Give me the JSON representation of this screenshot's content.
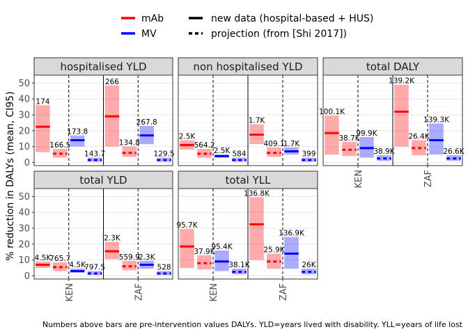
{
  "legend": {
    "colors": [
      {
        "label": "mAb",
        "color": "#ff0000"
      },
      {
        "label": "MV",
        "color": "#0000ff"
      }
    ],
    "linetypes": [
      {
        "label": "new data (hospital-based + HUS)",
        "style": "solid"
      },
      {
        "label": "projection (from [Shi 2017])",
        "style": "dashed"
      }
    ]
  },
  "ylabel": "% reduction in DALYs (mean, CI95)",
  "caption": "Numbers above bars are pre-intervention values DALYs. YLD=years lived with disability. YLL=years of life lost",
  "chart_data": [
    {
      "type": "bar",
      "title": "hospitalised YLD",
      "categories": [
        "KEN",
        "ZAF"
      ],
      "ylim": [
        -2,
        55
      ],
      "yticks": [
        0,
        10,
        20,
        30,
        40,
        50
      ],
      "show_x_ticks": false,
      "bars": [
        {
          "country": "KEN",
          "product": "mAb",
          "source": "new data",
          "mean": 22.5,
          "lo": 6.5,
          "hi": 36,
          "label": "174"
        },
        {
          "country": "KEN",
          "product": "mAb",
          "source": "projection",
          "mean": 5.5,
          "lo": 3,
          "hi": 8.5,
          "label": "166.5"
        },
        {
          "country": "KEN",
          "product": "MV",
          "source": "new data",
          "mean": 14,
          "lo": 10,
          "hi": 17,
          "label": "173.8"
        },
        {
          "country": "KEN",
          "product": "MV",
          "source": "projection",
          "mean": 1.5,
          "lo": 0.5,
          "hi": 3,
          "label": "143.7"
        },
        {
          "country": "ZAF",
          "product": "mAb",
          "source": "new data",
          "mean": 29,
          "lo": 10,
          "hi": 48.5,
          "label": "266"
        },
        {
          "country": "ZAF",
          "product": "mAb",
          "source": "projection",
          "mean": 6,
          "lo": 3.5,
          "hi": 10,
          "label": "134.8"
        },
        {
          "country": "ZAF",
          "product": "MV",
          "source": "new data",
          "mean": 17,
          "lo": 11.5,
          "hi": 23,
          "label": "267.8"
        },
        {
          "country": "ZAF",
          "product": "MV",
          "source": "projection",
          "mean": 1.5,
          "lo": 0.5,
          "hi": 3,
          "label": "129.5"
        }
      ]
    },
    {
      "type": "bar",
      "title": "non hospitalised YLD",
      "categories": [
        "KEN",
        "ZAF"
      ],
      "ylim": [
        -2,
        55
      ],
      "yticks": [
        0,
        10,
        20,
        30,
        40,
        50
      ],
      "show_x_ticks": false,
      "bars": [
        {
          "country": "KEN",
          "product": "mAb",
          "source": "new data",
          "mean": 11,
          "lo": 8,
          "hi": 14,
          "label": "2.5K"
        },
        {
          "country": "KEN",
          "product": "mAb",
          "source": "projection",
          "mean": 5.5,
          "lo": 3,
          "hi": 8.5,
          "label": "564.2"
        },
        {
          "country": "KEN",
          "product": "MV",
          "source": "new data",
          "mean": 4,
          "lo": 3,
          "hi": 5,
          "label": "2.5K"
        },
        {
          "country": "KEN",
          "product": "MV",
          "source": "projection",
          "mean": 1.5,
          "lo": 0.5,
          "hi": 3,
          "label": "584"
        },
        {
          "country": "ZAF",
          "product": "mAb",
          "source": "new data",
          "mean": 17.5,
          "lo": 11.5,
          "hi": 24,
          "label": "1.7K"
        },
        {
          "country": "ZAF",
          "product": "mAb",
          "source": "projection",
          "mean": 6,
          "lo": 3.5,
          "hi": 9.5,
          "label": "409.1"
        },
        {
          "country": "ZAF",
          "product": "MV",
          "source": "new data",
          "mean": 7,
          "lo": 5,
          "hi": 9.5,
          "label": "1.7K"
        },
        {
          "country": "ZAF",
          "product": "MV",
          "source": "projection",
          "mean": 1.5,
          "lo": 0.5,
          "hi": 3,
          "label": "399"
        }
      ]
    },
    {
      "type": "bar",
      "title": "total DALY",
      "categories": [
        "KEN",
        "ZAF"
      ],
      "ylim": [
        -2,
        55
      ],
      "yticks": [
        0,
        10,
        20,
        30,
        40,
        50
      ],
      "show_x_ticks": true,
      "bars": [
        {
          "country": "KEN",
          "product": "mAb",
          "source": "new data",
          "mean": 18.5,
          "lo": 5,
          "hi": 29.5,
          "label": "100.1K"
        },
        {
          "country": "KEN",
          "product": "mAb",
          "source": "projection",
          "mean": 8,
          "lo": 4,
          "hi": 13,
          "label": "38.7K"
        },
        {
          "country": "KEN",
          "product": "MV",
          "source": "new data",
          "mean": 9,
          "lo": 3,
          "hi": 16,
          "label": "99.9K"
        },
        {
          "country": "KEN",
          "product": "MV",
          "source": "projection",
          "mean": 2.5,
          "lo": 1,
          "hi": 4.5,
          "label": "38.9K"
        },
        {
          "country": "ZAF",
          "product": "mAb",
          "source": "new data",
          "mean": 32,
          "lo": 10,
          "hi": 49,
          "label": "139.2K"
        },
        {
          "country": "ZAF",
          "product": "mAb",
          "source": "projection",
          "mean": 9,
          "lo": 4.5,
          "hi": 14,
          "label": "26.4K"
        },
        {
          "country": "ZAF",
          "product": "MV",
          "source": "new data",
          "mean": 14,
          "lo": 5,
          "hi": 24.5,
          "label": "139.3K"
        },
        {
          "country": "ZAF",
          "product": "MV",
          "source": "projection",
          "mean": 2.5,
          "lo": 1,
          "hi": 4.5,
          "label": "26.6K"
        }
      ]
    },
    {
      "type": "bar",
      "title": "total YLD",
      "categories": [
        "KEN",
        "ZAF"
      ],
      "ylim": [
        -2,
        55
      ],
      "yticks": [
        0,
        10,
        20,
        30,
        40,
        50
      ],
      "show_x_ticks": true,
      "bars": [
        {
          "country": "KEN",
          "product": "mAb",
          "source": "new data",
          "mean": 7,
          "lo": 5,
          "hi": 9,
          "label": "4.5K"
        },
        {
          "country": "KEN",
          "product": "mAb",
          "source": "projection",
          "mean": 5.5,
          "lo": 3,
          "hi": 8.5,
          "label": "765.7"
        },
        {
          "country": "KEN",
          "product": "MV",
          "source": "new data",
          "mean": 3,
          "lo": 2,
          "hi": 4.5,
          "label": "4.5K"
        },
        {
          "country": "KEN",
          "product": "MV",
          "source": "projection",
          "mean": 1.5,
          "lo": 0.5,
          "hi": 3,
          "label": "797.5"
        },
        {
          "country": "ZAF",
          "product": "mAb",
          "source": "new data",
          "mean": 15.5,
          "lo": 10.5,
          "hi": 21.5,
          "label": "2.3K"
        },
        {
          "country": "ZAF",
          "product": "mAb",
          "source": "projection",
          "mean": 6,
          "lo": 3.5,
          "hi": 9.5,
          "label": "559.9"
        },
        {
          "country": "ZAF",
          "product": "MV",
          "source": "new data",
          "mean": 7,
          "lo": 4.5,
          "hi": 9.5,
          "label": "2.3K"
        },
        {
          "country": "ZAF",
          "product": "MV",
          "source": "projection",
          "mean": 1.5,
          "lo": 0.5,
          "hi": 3,
          "label": "528"
        }
      ]
    },
    {
      "type": "bar",
      "title": "total YLL",
      "categories": [
        "KEN",
        "ZAF"
      ],
      "ylim": [
        -2,
        55
      ],
      "yticks": [
        0,
        10,
        20,
        30,
        40,
        50
      ],
      "show_x_ticks": true,
      "bars": [
        {
          "country": "KEN",
          "product": "mAb",
          "source": "new data",
          "mean": 18.5,
          "lo": 5,
          "hi": 29.5,
          "label": "95.7K"
        },
        {
          "country": "KEN",
          "product": "mAb",
          "source": "projection",
          "mean": 8,
          "lo": 4,
          "hi": 13,
          "label": "37.9K"
        },
        {
          "country": "KEN",
          "product": "MV",
          "source": "new data",
          "mean": 9,
          "lo": 3,
          "hi": 16,
          "label": "95.4K"
        },
        {
          "country": "KEN",
          "product": "MV",
          "source": "projection",
          "mean": 2.5,
          "lo": 1,
          "hi": 4.5,
          "label": "38.1K"
        },
        {
          "country": "ZAF",
          "product": "mAb",
          "source": "new data",
          "mean": 32.5,
          "lo": 10,
          "hi": 49.5,
          "label": "136.8K"
        },
        {
          "country": "ZAF",
          "product": "mAb",
          "source": "projection",
          "mean": 9,
          "lo": 4.5,
          "hi": 14,
          "label": "25.9K"
        },
        {
          "country": "ZAF",
          "product": "MV",
          "source": "new data",
          "mean": 14,
          "lo": 4.5,
          "hi": 24.5,
          "label": "136.9K"
        },
        {
          "country": "ZAF",
          "product": "MV",
          "source": "projection",
          "mean": 2.5,
          "lo": 1,
          "hi": 4.5,
          "label": "26K"
        }
      ]
    }
  ]
}
